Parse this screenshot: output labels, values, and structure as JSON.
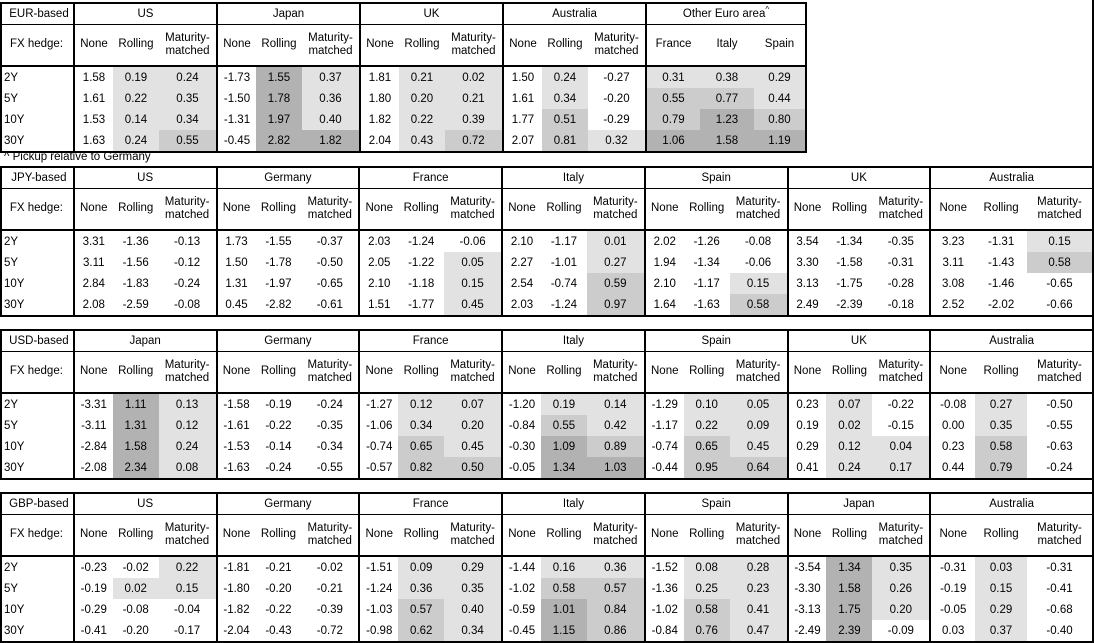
{
  "page": {
    "footnote": "^ Pickup relative to Germany",
    "fx_hedge_label": "FX hedge:",
    "tenors": [
      "2Y",
      "5Y",
      "10Y",
      "30Y"
    ],
    "hedge_columns": [
      "None",
      "Rolling",
      "Maturity-matched"
    ]
  },
  "heat_colors": {
    "negative": "#ffffff",
    "low": "#e2e2e2",
    "mid": "#cccccc",
    "high": "#b2b2b2"
  },
  "heat_rule": {
    "low_min": 0,
    "mid_min": 0.5,
    "high_min": 1.0
  },
  "tables": [
    {
      "base": "EUR-based",
      "groups": [
        {
          "name": "US",
          "cols": [
            "None",
            "Rolling",
            "Maturity-matched"
          ],
          "pickup": false,
          "rows": [
            [
              "1.58",
              "0.19",
              "0.24"
            ],
            [
              "1.61",
              "0.22",
              "0.35"
            ],
            [
              "1.53",
              "0.14",
              "0.34"
            ],
            [
              "1.63",
              "0.24",
              "0.55"
            ]
          ]
        },
        {
          "name": "Japan",
          "cols": [
            "None",
            "Rolling",
            "Maturity-matched"
          ],
          "pickup": false,
          "rows": [
            [
              "-1.73",
              "1.55",
              "0.37"
            ],
            [
              "-1.50",
              "1.78",
              "0.36"
            ],
            [
              "-1.31",
              "1.97",
              "0.40"
            ],
            [
              "-0.45",
              "2.82",
              "1.82"
            ]
          ]
        },
        {
          "name": "UK",
          "cols": [
            "None",
            "Rolling",
            "Maturity-matched"
          ],
          "pickup": false,
          "rows": [
            [
              "1.81",
              "0.21",
              "0.02"
            ],
            [
              "1.80",
              "0.20",
              "0.21"
            ],
            [
              "1.82",
              "0.22",
              "0.39"
            ],
            [
              "2.04",
              "0.43",
              "0.72"
            ]
          ]
        },
        {
          "name": "Australia",
          "cols": [
            "None",
            "Rolling",
            "Maturity-matched"
          ],
          "pickup": false,
          "rows": [
            [
              "1.50",
              "0.24",
              "-0.27"
            ],
            [
              "1.61",
              "0.34",
              "-0.20"
            ],
            [
              "1.77",
              "0.51",
              "-0.29"
            ],
            [
              "2.07",
              "0.81",
              "0.32"
            ]
          ]
        },
        {
          "name": "Other Euro area",
          "sup": "^",
          "cols": [
            "France",
            "Italy",
            "Spain"
          ],
          "pickup": true,
          "rows": [
            [
              "0.31",
              "0.38",
              "0.29"
            ],
            [
              "0.55",
              "0.77",
              "0.44"
            ],
            [
              "0.79",
              "1.23",
              "0.80"
            ],
            [
              "1.06",
              "1.58",
              "1.19"
            ]
          ]
        }
      ]
    },
    {
      "base": "JPY-based",
      "groups": [
        {
          "name": "US",
          "cols": [
            "None",
            "Rolling",
            "Maturity-matched"
          ],
          "pickup": false,
          "rows": [
            [
              "3.31",
              "-1.36",
              "-0.13"
            ],
            [
              "3.11",
              "-1.56",
              "-0.12"
            ],
            [
              "2.84",
              "-1.83",
              "-0.24"
            ],
            [
              "2.08",
              "-2.59",
              "-0.08"
            ]
          ]
        },
        {
          "name": "Germany",
          "cols": [
            "None",
            "Rolling",
            "Maturity-matched"
          ],
          "pickup": false,
          "rows": [
            [
              "1.73",
              "-1.55",
              "-0.37"
            ],
            [
              "1.50",
              "-1.78",
              "-0.50"
            ],
            [
              "1.31",
              "-1.97",
              "-0.65"
            ],
            [
              "0.45",
              "-2.82",
              "-0.61"
            ]
          ]
        },
        {
          "name": "France",
          "cols": [
            "None",
            "Rolling",
            "Maturity-matched"
          ],
          "pickup": false,
          "rows": [
            [
              "2.03",
              "-1.24",
              "-0.06"
            ],
            [
              "2.05",
              "-1.22",
              "0.05"
            ],
            [
              "2.10",
              "-1.18",
              "0.15"
            ],
            [
              "1.51",
              "-1.77",
              "0.45"
            ]
          ]
        },
        {
          "name": "Italy",
          "cols": [
            "None",
            "Rolling",
            "Maturity-matched"
          ],
          "pickup": false,
          "rows": [
            [
              "2.10",
              "-1.17",
              "0.01"
            ],
            [
              "2.27",
              "-1.01",
              "0.27"
            ],
            [
              "2.54",
              "-0.74",
              "0.59"
            ],
            [
              "2.03",
              "-1.24",
              "0.97"
            ]
          ]
        },
        {
          "name": "Spain",
          "cols": [
            "None",
            "Rolling",
            "Maturity-matched"
          ],
          "pickup": false,
          "rows": [
            [
              "2.02",
              "-1.26",
              "-0.08"
            ],
            [
              "1.94",
              "-1.34",
              "-0.06"
            ],
            [
              "2.10",
              "-1.17",
              "0.15"
            ],
            [
              "1.64",
              "-1.63",
              "0.58"
            ]
          ]
        },
        {
          "name": "UK",
          "cols": [
            "None",
            "Rolling",
            "Maturity-matched"
          ],
          "pickup": false,
          "rows": [
            [
              "3.54",
              "-1.34",
              "-0.35"
            ],
            [
              "3.30",
              "-1.58",
              "-0.31"
            ],
            [
              "3.13",
              "-1.75",
              "-0.28"
            ],
            [
              "2.49",
              "-2.39",
              "-0.18"
            ]
          ]
        },
        {
          "name": "Australia",
          "cols": [
            "None",
            "Rolling",
            "Maturity-matched"
          ],
          "pickup": false,
          "rows": [
            [
              "3.23",
              "-1.31",
              "0.15"
            ],
            [
              "3.11",
              "-1.43",
              "0.58"
            ],
            [
              "3.08",
              "-1.46",
              "-0.65"
            ],
            [
              "2.52",
              "-2.02",
              "-0.66"
            ]
          ]
        }
      ]
    },
    {
      "base": "USD-based",
      "groups": [
        {
          "name": "Japan",
          "cols": [
            "None",
            "Rolling",
            "Maturity-matched"
          ],
          "pickup": false,
          "rows": [
            [
              "-3.31",
              "1.11",
              "0.13"
            ],
            [
              "-3.11",
              "1.31",
              "0.12"
            ],
            [
              "-2.84",
              "1.58",
              "0.24"
            ],
            [
              "-2.08",
              "2.34",
              "0.08"
            ]
          ]
        },
        {
          "name": "Germany",
          "cols": [
            "None",
            "Rolling",
            "Maturity-matched"
          ],
          "pickup": false,
          "rows": [
            [
              "-1.58",
              "-0.19",
              "-0.24"
            ],
            [
              "-1.61",
              "-0.22",
              "-0.35"
            ],
            [
              "-1.53",
              "-0.14",
              "-0.34"
            ],
            [
              "-1.63",
              "-0.24",
              "-0.55"
            ]
          ]
        },
        {
          "name": "France",
          "cols": [
            "None",
            "Rolling",
            "Maturity-matched"
          ],
          "pickup": false,
          "rows": [
            [
              "-1.27",
              "0.12",
              "0.07"
            ],
            [
              "-1.06",
              "0.34",
              "0.20"
            ],
            [
              "-0.74",
              "0.65",
              "0.45"
            ],
            [
              "-0.57",
              "0.82",
              "0.50"
            ]
          ]
        },
        {
          "name": "Italy",
          "cols": [
            "None",
            "Rolling",
            "Maturity-matched"
          ],
          "pickup": false,
          "rows": [
            [
              "-1.20",
              "0.19",
              "0.14"
            ],
            [
              "-0.84",
              "0.55",
              "0.42"
            ],
            [
              "-0.30",
              "1.09",
              "0.89"
            ],
            [
              "-0.05",
              "1.34",
              "1.03"
            ]
          ]
        },
        {
          "name": "Spain",
          "cols": [
            "None",
            "Rolling",
            "Maturity-matched"
          ],
          "pickup": false,
          "rows": [
            [
              "-1.29",
              "0.10",
              "0.05"
            ],
            [
              "-1.17",
              "0.22",
              "0.09"
            ],
            [
              "-0.74",
              "0.65",
              "0.45"
            ],
            [
              "-0.44",
              "0.95",
              "0.64"
            ]
          ]
        },
        {
          "name": "UK",
          "cols": [
            "None",
            "Rolling",
            "Maturity-matched"
          ],
          "pickup": false,
          "rows": [
            [
              "0.23",
              "0.07",
              "-0.22"
            ],
            [
              "0.19",
              "0.02",
              "-0.15"
            ],
            [
              "0.29",
              "0.12",
              "0.04"
            ],
            [
              "0.41",
              "0.24",
              "0.17"
            ]
          ]
        },
        {
          "name": "Australia",
          "cols": [
            "None",
            "Rolling",
            "Maturity-matched"
          ],
          "pickup": false,
          "rows": [
            [
              "-0.08",
              "0.27",
              "-0.50"
            ],
            [
              "0.00",
              "0.35",
              "-0.55"
            ],
            [
              "0.23",
              "0.58",
              "-0.63"
            ],
            [
              "0.44",
              "0.79",
              "-0.24"
            ]
          ]
        }
      ]
    },
    {
      "base": "GBP-based",
      "groups": [
        {
          "name": "US",
          "cols": [
            "None",
            "Rolling",
            "Maturity-matched"
          ],
          "pickup": false,
          "rows": [
            [
              "-0.23",
              "-0.02",
              "0.22"
            ],
            [
              "-0.19",
              "0.02",
              "0.15"
            ],
            [
              "-0.29",
              "-0.08",
              "-0.04"
            ],
            [
              "-0.41",
              "-0.20",
              "-0.17"
            ]
          ]
        },
        {
          "name": "Germany",
          "cols": [
            "None",
            "Rolling",
            "Maturity-matched"
          ],
          "pickup": false,
          "rows": [
            [
              "-1.81",
              "-0.21",
              "-0.02"
            ],
            [
              "-1.80",
              "-0.20",
              "-0.21"
            ],
            [
              "-1.82",
              "-0.22",
              "-0.39"
            ],
            [
              "-2.04",
              "-0.43",
              "-0.72"
            ]
          ]
        },
        {
          "name": "France",
          "cols": [
            "None",
            "Rolling",
            "Maturity-matched"
          ],
          "pickup": false,
          "rows": [
            [
              "-1.51",
              "0.09",
              "0.29"
            ],
            [
              "-1.24",
              "0.36",
              "0.35"
            ],
            [
              "-1.03",
              "0.57",
              "0.40"
            ],
            [
              "-0.98",
              "0.62",
              "0.34"
            ]
          ]
        },
        {
          "name": "Italy",
          "cols": [
            "None",
            "Rolling",
            "Maturity-matched"
          ],
          "pickup": false,
          "rows": [
            [
              "-1.44",
              "0.16",
              "0.36"
            ],
            [
              "-1.02",
              "0.58",
              "0.57"
            ],
            [
              "-0.59",
              "1.01",
              "0.84"
            ],
            [
              "-0.45",
              "1.15",
              "0.86"
            ]
          ]
        },
        {
          "name": "Spain",
          "cols": [
            "None",
            "Rolling",
            "Maturity-matched"
          ],
          "pickup": false,
          "rows": [
            [
              "-1.52",
              "0.08",
              "0.28"
            ],
            [
              "-1.36",
              "0.25",
              "0.23"
            ],
            [
              "-1.02",
              "0.58",
              "0.41"
            ],
            [
              "-0.84",
              "0.76",
              "0.47"
            ]
          ]
        },
        {
          "name": "Japan",
          "cols": [
            "None",
            "Rolling",
            "Maturity-matched"
          ],
          "pickup": false,
          "rows": [
            [
              "-3.54",
              "1.34",
              "0.35"
            ],
            [
              "-3.30",
              "1.58",
              "0.26"
            ],
            [
              "-3.13",
              "1.75",
              "0.20"
            ],
            [
              "-2.49",
              "2.39",
              "-0.09"
            ]
          ]
        },
        {
          "name": "Australia",
          "cols": [
            "None",
            "Rolling",
            "Maturity-matched"
          ],
          "pickup": false,
          "rows": [
            [
              "-0.31",
              "0.03",
              "-0.31"
            ],
            [
              "-0.19",
              "0.15",
              "-0.41"
            ],
            [
              "-0.05",
              "0.29",
              "-0.68"
            ],
            [
              "0.03",
              "0.37",
              "-0.40"
            ]
          ]
        }
      ]
    }
  ]
}
